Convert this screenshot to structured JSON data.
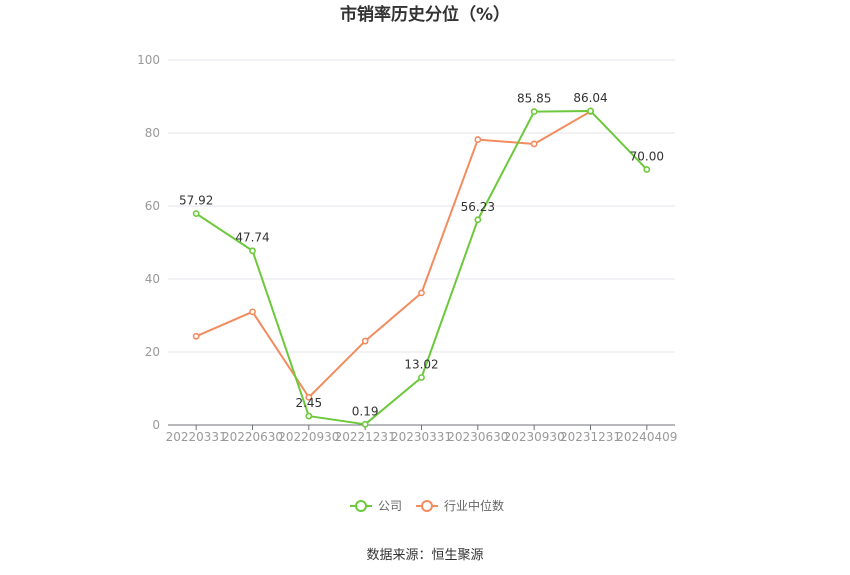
{
  "chart_data": {
    "type": "line",
    "title": "市销率历史分位（%）",
    "categories": [
      "20220331",
      "20220630",
      "20220930",
      "20221231",
      "20230331",
      "20230630",
      "20230930",
      "20231231",
      "20240409"
    ],
    "ylim": [
      0,
      100
    ],
    "yticks": [
      0,
      20,
      40,
      60,
      80,
      100
    ],
    "grid": true,
    "legend_position": "bottom",
    "series": [
      {
        "name": "公司",
        "color": "#6cc93b",
        "values": [
          57.92,
          47.74,
          2.45,
          0.19,
          13.02,
          56.23,
          85.85,
          86.04,
          70.0
        ],
        "labels": [
          "57.92",
          "47.74",
          "2.45",
          "0.19",
          "13.02",
          "56.23",
          "85.85",
          "86.04",
          "70.00"
        ]
      },
      {
        "name": "行业中位数",
        "color": "#f28c5f",
        "values": [
          24.3,
          31.0,
          7.6,
          23.0,
          36.2,
          78.2,
          77.0,
          85.9,
          null
        ],
        "labels": []
      }
    ]
  },
  "source": "数据来源：恒生聚源"
}
